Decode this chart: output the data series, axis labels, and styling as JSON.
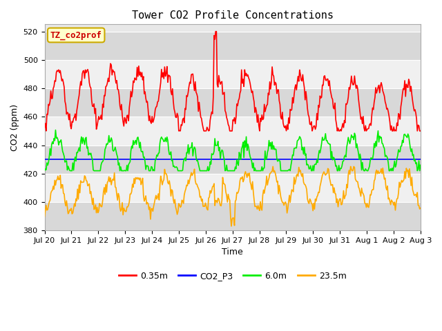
{
  "title": "Tower CO2 Profile Concentrations",
  "xlabel": "Time",
  "ylabel": "CO2 (ppm)",
  "ylim": [
    380,
    525
  ],
  "yticks": [
    380,
    400,
    420,
    440,
    460,
    480,
    500,
    520
  ],
  "annotation_text": "TZ_co2prof",
  "annotation_bg": "#ffffcc",
  "annotation_border": "#ccaa00",
  "annotation_text_color": "#cc0000",
  "series": {
    "0.35m": {
      "color": "#ff0000",
      "lw": 1.2
    },
    "CO2_P3": {
      "color": "#0000ff",
      "lw": 1.2
    },
    "6.0m": {
      "color": "#00ee00",
      "lw": 1.2
    },
    "23.5m": {
      "color": "#ffaa00",
      "lw": 1.2
    }
  },
  "bg_color": "#ffffff",
  "plot_bg_color": "#e8e8e8",
  "band_light": "#f0f0f0",
  "band_dark": "#d8d8d8",
  "n_points": 480,
  "x_start": 0,
  "x_end": 14,
  "xtick_labels": [
    "Jul 20",
    "Jul 21",
    "Jul 22",
    "Jul 23",
    "Jul 24",
    "Jul 25",
    "Jul 26",
    "Jul 27",
    "Jul 28",
    "Jul 29",
    "Jul 30",
    "Jul 31",
    "Aug 1",
    "Aug 2",
    "Aug 3"
  ],
  "xtick_positions": [
    0,
    1,
    2,
    3,
    4,
    5,
    6,
    7,
    8,
    9,
    10,
    11,
    12,
    13,
    14
  ]
}
